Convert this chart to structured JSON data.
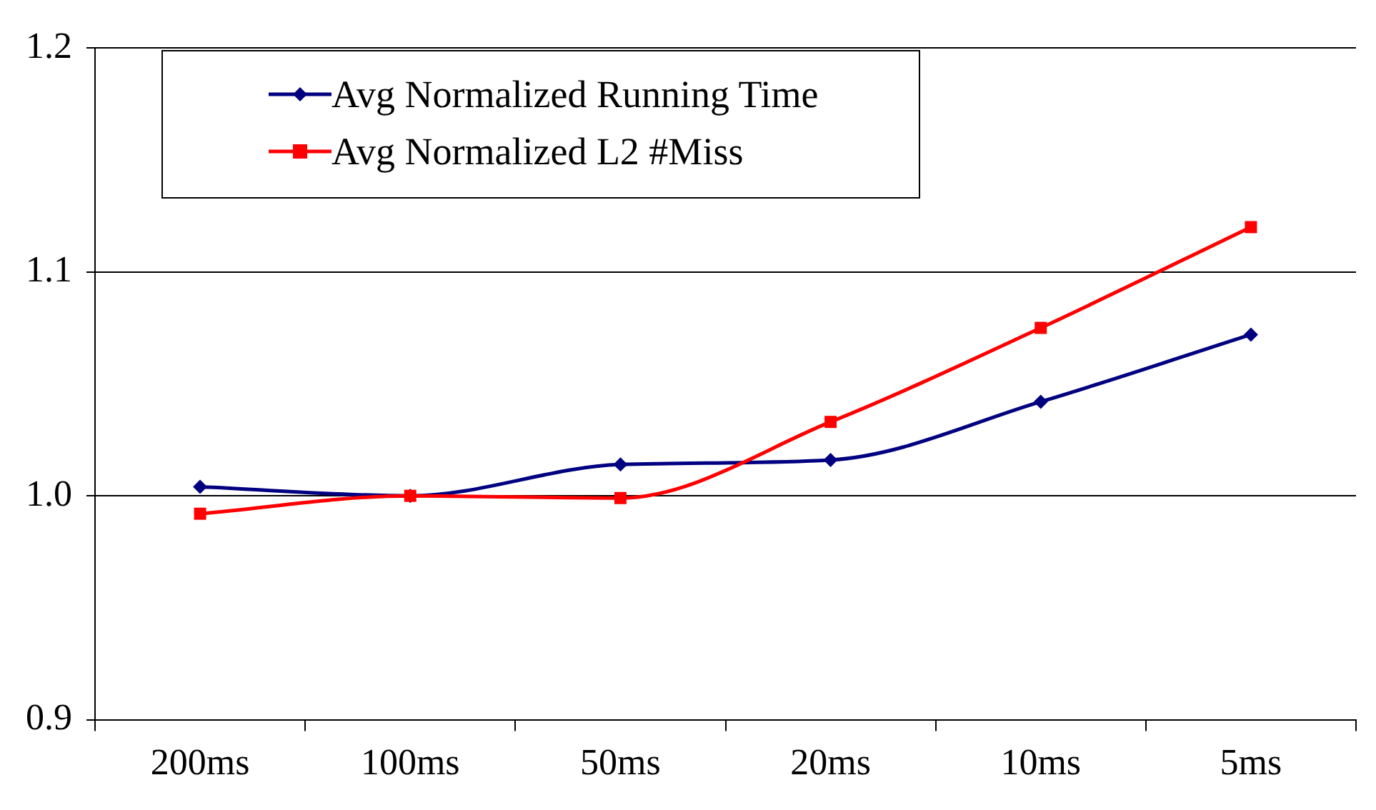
{
  "chart_data": {
    "type": "line",
    "categories": [
      "200ms",
      "100ms",
      "50ms",
      "20ms",
      "10ms",
      "5ms"
    ],
    "series": [
      {
        "name": "Avg Normalized Running Time",
        "color": "#000080",
        "marker": "diamond",
        "values": [
          1.004,
          1.0,
          1.014,
          1.016,
          1.042,
          1.072
        ]
      },
      {
        "name": "Avg Normalized L2 #Miss",
        "color": "#ff0000",
        "marker": "square",
        "values": [
          0.992,
          1.0,
          0.999,
          1.033,
          1.075,
          1.12
        ]
      }
    ],
    "ylim": [
      0.9,
      1.2
    ],
    "yticks": [
      {
        "value": 0.9,
        "label": "0.9"
      },
      {
        "value": 1.0,
        "label": "1.0"
      },
      {
        "value": 1.1,
        "label": "1.1"
      },
      {
        "value": 1.2,
        "label": "1.2"
      }
    ],
    "grid": "y",
    "legend": "top left"
  }
}
